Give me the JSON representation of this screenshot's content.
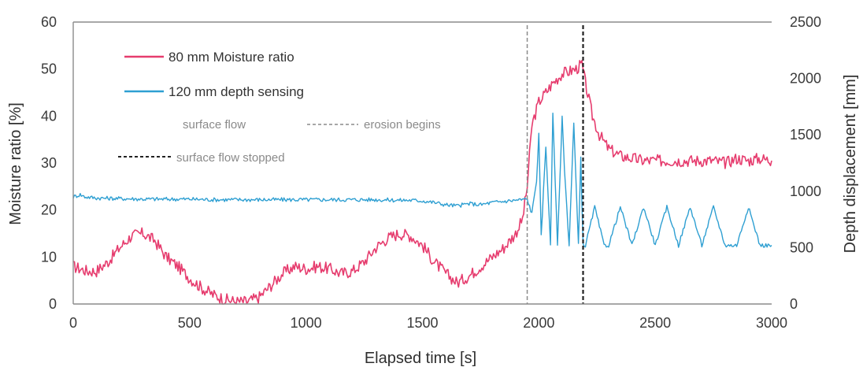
{
  "chart_data": {
    "type": "line",
    "x_label": "Elapsed time [s]",
    "y_label_left": "Moisture ratio [%]",
    "y_label_right": "Depth displacement [mm]",
    "top_label": "",
    "x_ticks": [
      0,
      500,
      1000,
      1500,
      2000,
      2500,
      3000
    ],
    "y_ticks_left": [
      0,
      10,
      20,
      30,
      40,
      50,
      60
    ],
    "y_ticks_right": [
      0,
      500,
      1000,
      1500,
      2000,
      2500
    ],
    "xlim": [
      0,
      3000
    ],
    "ylim_left": [
      0,
      60
    ],
    "ylim_right": [
      0,
      2500
    ],
    "grid": "top gridline only",
    "legend_position": "upper-left",
    "series": [
      {
        "name": "80 mm Moisture ratio",
        "axis": "left",
        "color": "#e63c6e",
        "x": [
          0,
          60,
          100,
          150,
          200,
          250,
          300,
          350,
          400,
          450,
          500,
          550,
          600,
          650,
          700,
          750,
          800,
          850,
          900,
          950,
          1000,
          1050,
          1100,
          1150,
          1200,
          1250,
          1300,
          1350,
          1400,
          1450,
          1500,
          1550,
          1600,
          1650,
          1700,
          1750,
          1800,
          1850,
          1900,
          1930,
          1950,
          1970,
          2000,
          2030,
          2060,
          2100,
          2130,
          2160,
          2185,
          2200,
          2230,
          2260,
          2300,
          2350,
          2400,
          2450,
          2500,
          2550,
          2600,
          2650,
          2700,
          2750,
          2800,
          2850,
          2900,
          2950,
          3000
        ],
        "y": [
          8,
          7,
          7,
          9,
          12,
          14.5,
          15,
          13.5,
          10,
          8,
          5.5,
          3.5,
          2,
          1,
          0.5,
          0.5,
          1.5,
          4,
          6.5,
          8,
          7.5,
          8,
          7.5,
          6.5,
          7,
          9,
          12,
          14,
          15,
          14.5,
          12.5,
          9,
          6.5,
          4.5,
          6,
          8,
          10,
          12,
          15,
          18,
          25,
          38,
          43,
          45,
          47,
          49,
          49.5,
          50,
          51,
          47,
          40,
          36,
          33,
          31.5,
          31,
          30.5,
          30.5,
          30.5,
          30.5,
          30.5,
          30.5,
          30.5,
          30,
          31,
          30.5,
          31,
          30.5
        ]
      },
      {
        "name": "120 mm depth sensing",
        "axis": "right",
        "color": "#2e9fd2",
        "x": [
          0,
          30,
          50,
          100,
          200,
          300,
          400,
          500,
          600,
          700,
          800,
          900,
          1000,
          1100,
          1200,
          1300,
          1400,
          1450,
          1500,
          1550,
          1600,
          1650,
          1700,
          1750,
          1800,
          1850,
          1900,
          1950,
          1970,
          1990,
          2000,
          2010,
          2030,
          2050,
          2060,
          2080,
          2100,
          2110,
          2130,
          2150,
          2170,
          2180,
          2190,
          2200,
          2240,
          2280,
          2300,
          2350,
          2400,
          2450,
          2500,
          2550,
          2600,
          2650,
          2700,
          2750,
          2800,
          2850,
          2900,
          2950,
          3000
        ],
        "y": [
          950,
          970,
          950,
          940,
          935,
          930,
          930,
          930,
          925,
          925,
          925,
          925,
          925,
          925,
          925,
          925,
          920,
          920,
          915,
          900,
          880,
          870,
          890,
          880,
          900,
          910,
          920,
          930,
          800,
          1100,
          1500,
          600,
          1400,
          520,
          1700,
          520,
          1650,
          1200,
          520,
          1600,
          520,
          1300,
          520,
          520,
          860,
          520,
          520,
          860,
          520,
          860,
          520,
          860,
          520,
          860,
          520,
          860,
          520,
          520,
          860,
          520,
          520
        ]
      }
    ],
    "annotations": [
      {
        "x": 1950,
        "label": "erosion begins",
        "style": "dashed",
        "color": "#8a8a8a"
      },
      {
        "x": 2190,
        "label": "surface flow stopped",
        "style": "dashed",
        "color": "#222222"
      },
      {
        "label": "surface flow",
        "style": "text"
      }
    ]
  },
  "legend": {
    "moisture": "80 mm Moisture ratio",
    "depth": "120 mm depth sensing",
    "surface_flow": "surface flow",
    "erosion": "erosion begins",
    "stopped": "surface flow stopped"
  }
}
